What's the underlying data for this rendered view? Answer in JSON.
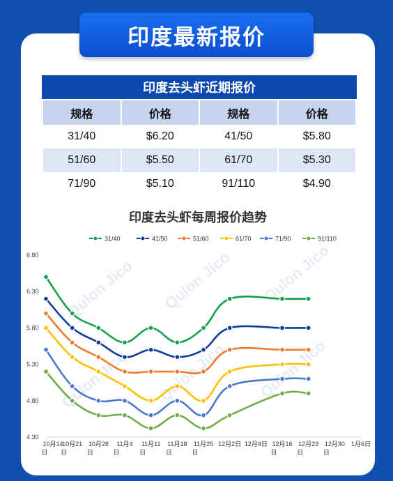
{
  "banner": {
    "title": "印度最新报价"
  },
  "table": {
    "title": "印度去头虾近期报价",
    "headers": [
      "规格",
      "价格",
      "规格",
      "价格"
    ],
    "rows": [
      [
        "31/40",
        "$6.20",
        "41/50",
        "$5.80"
      ],
      [
        "51/60",
        "$5.50",
        "61/70",
        "$5.30"
      ],
      [
        "71/90",
        "$5.10",
        "91/110",
        "$4.90"
      ]
    ]
  },
  "watermark": "Qulon Jico",
  "chart_data": {
    "type": "line",
    "title": "印度去头虾每周报价趋势",
    "legend_placement": "top",
    "grid": false,
    "x": [
      "10月14日",
      "10月21日",
      "10月28日",
      "11月4日",
      "11月11日",
      "11月18日",
      "11月25日",
      "12月2日",
      "12月9日",
      "12月16日",
      "12月23日",
      "12月30日",
      "1月6日"
    ],
    "x_tick_labels": [
      [
        "10月14",
        "日"
      ],
      [
        "10月21",
        "日"
      ],
      [
        "10月28",
        "日"
      ],
      [
        "11月4",
        "日"
      ],
      [
        "11月11",
        "日"
      ],
      [
        "11月18",
        "日"
      ],
      [
        "11月25",
        "日"
      ],
      [
        "12月2日",
        ""
      ],
      [
        "12月9日",
        ""
      ],
      [
        "12月16",
        "日"
      ],
      [
        "12月23",
        "日"
      ],
      [
        "12月30",
        "日"
      ],
      [
        "1月6日",
        ""
      ]
    ],
    "y_ticks": [
      "4.30",
      "4.80",
      "5.30",
      "5.80",
      "6.30",
      "6.80"
    ],
    "ylim": [
      4.3,
      6.8
    ],
    "series": [
      {
        "name": "31/40",
        "color": "#12a04a",
        "points": [
          [
            0,
            6.5
          ],
          [
            1,
            6.0
          ],
          [
            2,
            5.8
          ],
          [
            3,
            5.6
          ],
          [
            4,
            5.8
          ],
          [
            5,
            5.6
          ],
          [
            6,
            5.8
          ],
          [
            7,
            6.2
          ],
          [
            9,
            6.2
          ],
          [
            10,
            6.2
          ]
        ]
      },
      {
        "name": "41/50",
        "color": "#0e3e9a",
        "points": [
          [
            0,
            6.2
          ],
          [
            1,
            5.8
          ],
          [
            2,
            5.6
          ],
          [
            3,
            5.4
          ],
          [
            4,
            5.5
          ],
          [
            5,
            5.4
          ],
          [
            6,
            5.5
          ],
          [
            7,
            5.8
          ],
          [
            9,
            5.8
          ],
          [
            10,
            5.8
          ]
        ]
      },
      {
        "name": "51/60",
        "color": "#ee7b30",
        "points": [
          [
            0,
            6.0
          ],
          [
            1,
            5.6
          ],
          [
            2,
            5.4
          ],
          [
            3,
            5.2
          ],
          [
            4,
            5.2
          ],
          [
            5,
            5.2
          ],
          [
            6,
            5.2
          ],
          [
            7,
            5.5
          ],
          [
            9,
            5.5
          ],
          [
            10,
            5.5
          ]
        ]
      },
      {
        "name": "61/70",
        "color": "#ffc000",
        "points": [
          [
            0,
            5.8
          ],
          [
            1,
            5.4
          ],
          [
            2,
            5.2
          ],
          [
            3,
            5.0
          ],
          [
            4,
            4.8
          ],
          [
            5,
            5.0
          ],
          [
            6,
            4.8
          ],
          [
            7,
            5.2
          ],
          [
            9,
            5.3
          ],
          [
            10,
            5.3
          ]
        ]
      },
      {
        "name": "71/90",
        "color": "#4a78cc",
        "points": [
          [
            0,
            5.5
          ],
          [
            1,
            5.0
          ],
          [
            2,
            4.8
          ],
          [
            3,
            4.8
          ],
          [
            4,
            4.6
          ],
          [
            5,
            4.8
          ],
          [
            6,
            4.6
          ],
          [
            7,
            5.0
          ],
          [
            9,
            5.1
          ],
          [
            10,
            5.1
          ]
        ]
      },
      {
        "name": "91/110",
        "color": "#70ad47",
        "points": [
          [
            0,
            5.2
          ],
          [
            1,
            4.8
          ],
          [
            2,
            4.6
          ],
          [
            3,
            4.6
          ],
          [
            4,
            4.42
          ],
          [
            5,
            4.6
          ],
          [
            6,
            4.42
          ],
          [
            7,
            4.6
          ],
          [
            9,
            4.9
          ],
          [
            10,
            4.9
          ]
        ]
      }
    ]
  }
}
